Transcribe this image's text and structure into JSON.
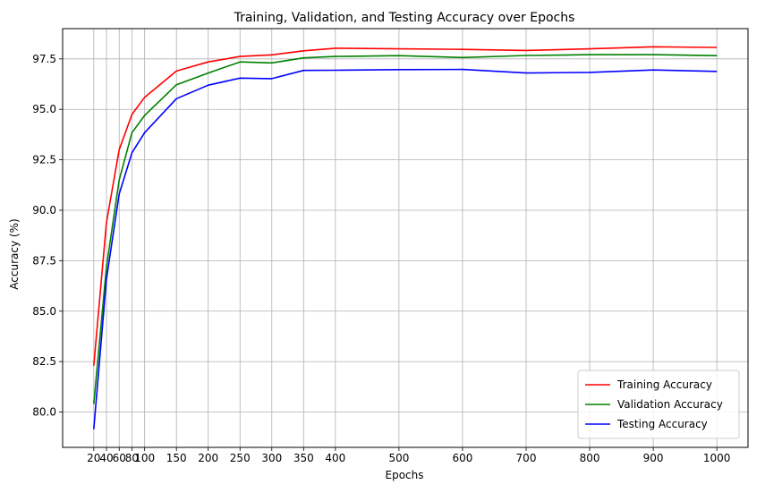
{
  "chart_data": {
    "type": "line",
    "title": "Training, Validation, and Testing Accuracy over Epochs",
    "xlabel": "Epochs",
    "ylabel": "Accuracy (%)",
    "x": [
      20,
      40,
      60,
      80,
      100,
      150,
      200,
      250,
      300,
      350,
      400,
      500,
      600,
      700,
      800,
      900,
      1000
    ],
    "xticks": [
      "20",
      "40",
      "60",
      "80",
      "100",
      "150",
      "200",
      "250",
      "300",
      "350",
      "400",
      "500",
      "600",
      "700",
      "800",
      "900",
      "1000"
    ],
    "yticks": [
      "80.0",
      "82.5",
      "85.0",
      "87.5",
      "90.0",
      "92.5",
      "95.0",
      "97.5"
    ],
    "xlim": [
      -29,
      1049
    ],
    "ylim": [
      78.25,
      99.0
    ],
    "grid": true,
    "legend_position": "lower right",
    "series": [
      {
        "name": "Training Accuracy",
        "color": "#ff0000",
        "values": [
          82.3,
          89.4,
          93.0,
          94.75,
          95.6,
          96.9,
          97.35,
          97.62,
          97.7,
          97.9,
          98.03,
          98.0,
          97.97,
          97.92,
          98.0,
          98.1,
          98.07
        ]
      },
      {
        "name": "Validation Accuracy",
        "color": "#008000",
        "values": [
          80.4,
          87.2,
          91.5,
          93.85,
          94.7,
          96.22,
          96.8,
          97.35,
          97.3,
          97.55,
          97.62,
          97.66,
          97.57,
          97.67,
          97.71,
          97.71,
          97.66
        ]
      },
      {
        "name": "Testing Accuracy",
        "color": "#0000ff",
        "values": [
          79.15,
          86.6,
          90.8,
          92.85,
          93.85,
          95.53,
          96.2,
          96.55,
          96.52,
          96.93,
          96.94,
          96.97,
          96.98,
          96.8,
          96.83,
          96.95,
          96.88
        ]
      }
    ]
  }
}
